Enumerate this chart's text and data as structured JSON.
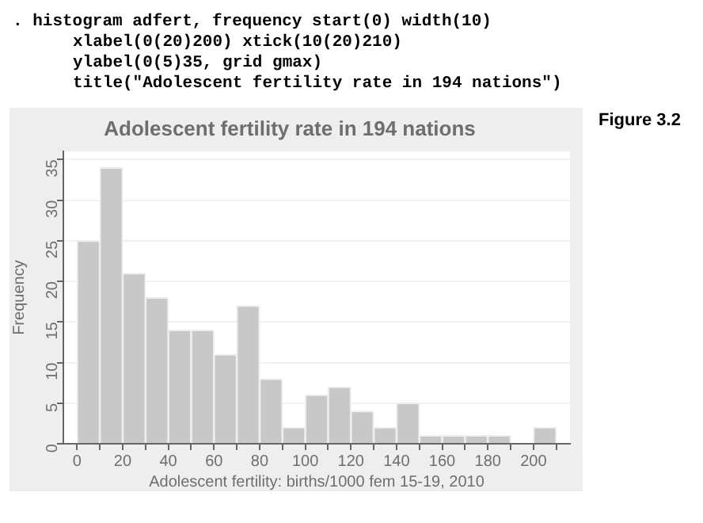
{
  "chart_data": {
    "type": "histogram",
    "title": "Adolescent fertility rate in 194 nations",
    "xlabel": "Adolescent fertility: births/1000 fem 15-19, 2010",
    "ylabel": "Frequency",
    "annotations": [
      ". histogram adfert, frequency start(0) width(10)",
      "xlabel(0(20)200) xtick(10(20)210)",
      "ylabel(0(5)35, grid gmax)",
      "title(\"Adolescent fertility rate in 194 nations\")",
      "Figure 3.2"
    ],
    "bins": [
      0,
      10,
      20,
      30,
      40,
      50,
      60,
      70,
      80,
      90,
      100,
      110,
      120,
      130,
      140,
      150,
      160,
      170,
      180,
      190,
      200,
      210
    ],
    "values": [
      25,
      34,
      21,
      18,
      14,
      14,
      11,
      17,
      8,
      2,
      6,
      7,
      4,
      2,
      5,
      1,
      1,
      1,
      1,
      0,
      2
    ],
    "color": "#c8c8c8",
    "xlim": [
      -6,
      216
    ],
    "xticks": [
      0,
      {
        "value": 10,
        "label": null
      },
      20,
      {
        "value": 30,
        "label": null
      },
      40,
      {
        "value": 50,
        "label": null
      },
      60,
      {
        "value": 70,
        "label": null
      },
      80,
      {
        "value": 90,
        "label": null
      },
      100,
      {
        "value": 110,
        "label": null
      },
      120,
      {
        "value": 130,
        "label": null
      },
      140,
      {
        "value": 150,
        "label": null
      },
      160,
      {
        "value": 170,
        "label": null
      },
      180,
      {
        "value": 190,
        "label": null
      },
      200,
      {
        "value": 210,
        "label": null
      }
    ],
    "ylim": [
      0,
      36
    ],
    "yticks": [
      0,
      5,
      10,
      15,
      20,
      25,
      30,
      35
    ],
    "grid": "y"
  }
}
